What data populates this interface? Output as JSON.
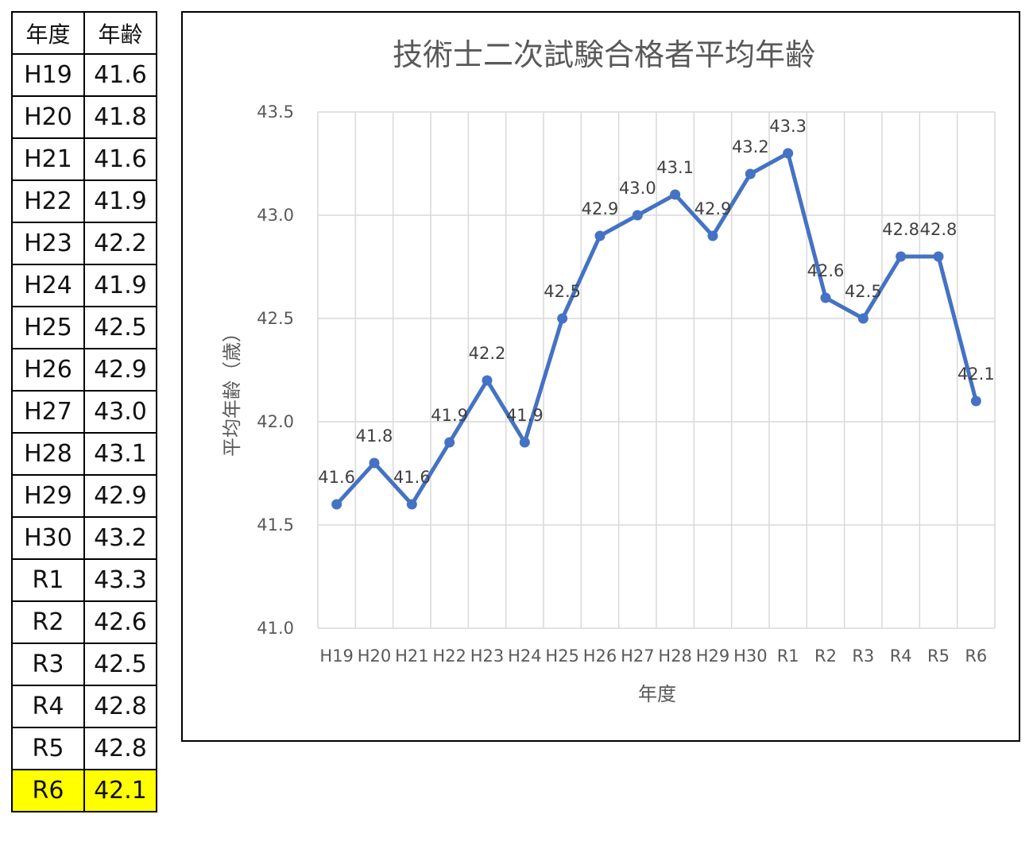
{
  "table": {
    "headers": [
      "年度",
      "年齢"
    ],
    "rows": [
      [
        "H19",
        "41.6"
      ],
      [
        "H20",
        "41.8"
      ],
      [
        "H21",
        "41.6"
      ],
      [
        "H22",
        "41.9"
      ],
      [
        "H23",
        "42.2"
      ],
      [
        "H24",
        "41.9"
      ],
      [
        "H25",
        "42.5"
      ],
      [
        "H26",
        "42.9"
      ],
      [
        "H27",
        "43.0"
      ],
      [
        "H28",
        "43.1"
      ],
      [
        "H29",
        "42.9"
      ],
      [
        "H30",
        "43.2"
      ],
      [
        "R1",
        "43.3"
      ],
      [
        "R2",
        "42.6"
      ],
      [
        "R3",
        "42.5"
      ],
      [
        "R4",
        "42.8"
      ],
      [
        "R5",
        "42.8"
      ],
      [
        "R6",
        "42.1"
      ]
    ],
    "highlight_row": "R6",
    "highlight_color": "#ffff00"
  },
  "chart_data": {
    "type": "line",
    "title": "技術士二次試験合格者平均年齢",
    "xlabel": "年度",
    "ylabel": "平均年齢（歳）",
    "categories": [
      "H19",
      "H20",
      "H21",
      "H22",
      "H23",
      "H24",
      "H25",
      "H26",
      "H27",
      "H28",
      "H29",
      "H30",
      "R1",
      "R2",
      "R3",
      "R4",
      "R5",
      "R6"
    ],
    "series": [
      {
        "values": [
          41.6,
          41.8,
          41.6,
          41.9,
          42.2,
          41.9,
          42.5,
          42.9,
          43.0,
          43.1,
          42.9,
          43.2,
          43.3,
          42.6,
          42.5,
          42.8,
          42.8,
          42.1
        ]
      }
    ],
    "data_labels": [
      "41.6",
      "41.8",
      "41.6",
      "41.9",
      "42.2",
      "41.9",
      "42.5",
      "42.9",
      "43.0",
      "43.1",
      "42.9",
      "43.2",
      "43.3",
      "42.6",
      "42.5",
      "42.8",
      "42.8",
      "42.1"
    ],
    "ylim": [
      41.0,
      43.5
    ],
    "yticks": [
      "41.0",
      "41.5",
      "42.0",
      "42.5",
      "43.0",
      "43.5"
    ],
    "grid": true,
    "legend": "none",
    "series_color": "#4472c4"
  }
}
